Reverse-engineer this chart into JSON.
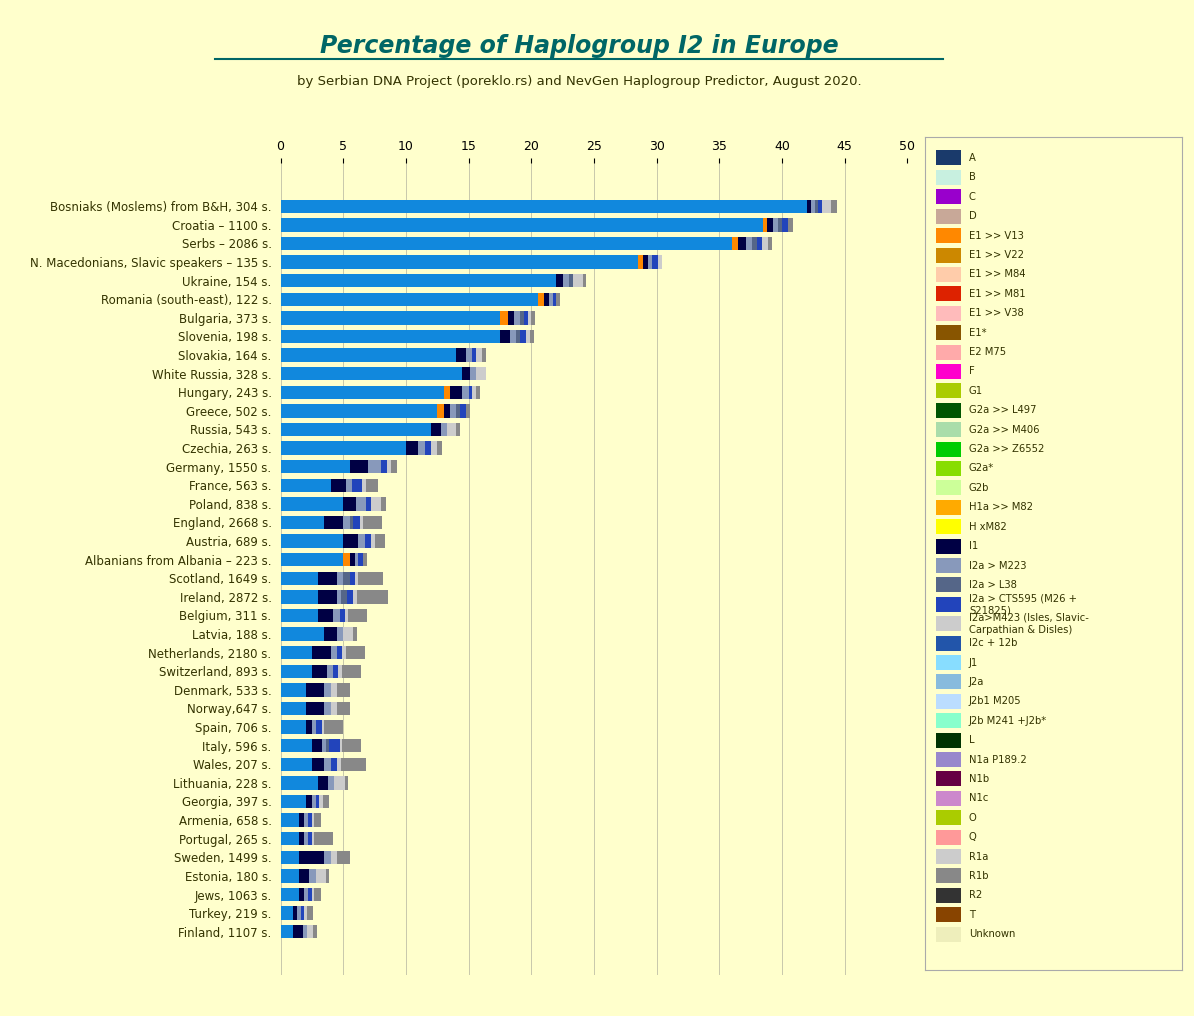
{
  "title": "Percentage of Haplogroup I2 in Europe",
  "subtitle": "by Serbian DNA Project (poreklo.rs) and NevGen Haplogroup Predictor, August 2020.",
  "background_color": "#FFFFCC",
  "title_color": "#006666",
  "subtitle_color": "#333300",
  "xlim": [
    0,
    50
  ],
  "xticks": [
    0,
    5,
    10,
    15,
    20,
    25,
    30,
    35,
    40,
    45,
    50
  ],
  "countries": [
    "Bosniaks (Moslems) from B&H, 304 s.",
    "Croatia – 1100 s.",
    "Serbs – 2086 s.",
    "N. Macedonians, Slavic speakers – 135 s.",
    "Ukraine, 154 s.",
    "Romania (south-east), 122 s.",
    "Bulgaria, 373 s.",
    "Slovenia, 198 s.",
    "Slovakia, 164 s.",
    "White Russia, 328 s.",
    "Hungary, 243 s.",
    "Greece, 502 s.",
    "Russia, 543 s.",
    "Czechia, 263 s.",
    "Germany, 1550 s.",
    "France, 563 s.",
    "Poland, 838 s.",
    "England, 2668 s.",
    "Austria, 689 s.",
    "Albanians from Albania – 223 s.",
    "Scotland, 1649 s.",
    "Ireland, 2872 s.",
    "Belgium, 311 s.",
    "Latvia, 188 s.",
    "Netherlands, 2180 s.",
    "Switzerland, 893 s.",
    "Denmark, 533 s.",
    "Norway,647 s.",
    "Spain, 706 s.",
    "Italy, 596 s.",
    "Wales, 207 s.",
    "Lithuania, 228 s.",
    "Georgia, 397 s.",
    "Armenia, 658 s.",
    "Portugal, 265 s.",
    "Sweden, 1499 s.",
    "Estonia, 180 s.",
    "Jews, 1063 s.",
    "Turkey, 219 s.",
    "Finland, 1107 s."
  ],
  "haplogroups": [
    "A",
    "B",
    "C",
    "D",
    "E1 >> V13",
    "E1 >> V22",
    "E1 >> M84",
    "E1 >> M81",
    "E1 >> V38",
    "E1*",
    "E2 M75",
    "F",
    "G1",
    "G2a >> L497",
    "G2a >> M406",
    "G2a >> Z6552",
    "G2a*",
    "G2b",
    "H1a >> M82",
    "H xM82",
    "I1",
    "I2a > M223",
    "I2a > L38",
    "I2a > CTS595 (M26 + S21825)",
    "I2a>M423 (Isles, Slavic-Carpathian & Disles)",
    "I2c + 12b",
    "J1",
    "J2a",
    "J2b1 M205",
    "J2b M241 +J2b*",
    "L",
    "N1a P189.2",
    "N1b",
    "N1c",
    "O",
    "Q",
    "R1a",
    "R1b",
    "R2",
    "T",
    "Unknown"
  ],
  "legend_labels": [
    "A",
    "B",
    "C",
    "D",
    "E1 >> V13",
    "E1 >> V22",
    "E1 >> M84",
    "E1 >> M81",
    "E1 >> V38",
    "E1*",
    "E2 M75",
    "F",
    "G1",
    "G2a >> L497",
    "G2a >> M406",
    "G2a >> Z6552",
    "G2a*",
    "G2b",
    "H1a >> M82",
    "H xM82",
    "I1",
    "I2a > M223",
    "I2a > L38",
    "I2a > CTS595 (M26 +\nS21825)",
    "I2a>M423 (Isles, Slavic-\nCarpathian & Disles)",
    "I2c + 12b",
    "J1",
    "J2a",
    "J2b1 M205",
    "J2b M241 +J2b*",
    "L",
    "N1a P189.2",
    "N1b",
    "N1c",
    "O",
    "Q",
    "R1a",
    "R1b",
    "R2",
    "T",
    "Unknown"
  ],
  "haplo_colors": {
    "A": "#1a3a6b",
    "B": "#c8f0e0",
    "C": "#9900cc",
    "D": "#c8a898",
    "E1 >> V13": "#ff8800",
    "E1 >> V22": "#cc8800",
    "E1 >> M84": "#ffccaa",
    "E1 >> M81": "#dd2200",
    "E1 >> V38": "#ffbbbb",
    "E1*": "#885500",
    "E2 M75": "#ffaaaa",
    "F": "#ff00cc",
    "G1": "#aacc00",
    "G2a >> L497": "#005500",
    "G2a >> M406": "#aaddaa",
    "G2a >> Z6552": "#00cc00",
    "G2a*": "#88dd00",
    "G2b": "#ccff99",
    "H1a >> M82": "#ffaa00",
    "H xM82": "#ffff00",
    "I1": "#000044",
    "I2a > M223": "#8899bb",
    "I2a > L38": "#556688",
    "I2a > CTS595 (M26 + S21825)": "#2244bb",
    "I2a>M423 (Isles, Slavic-Carpathian & Disles)": "#1188dd",
    "I2c + 12b": "#2255aa",
    "J1": "#88ddff",
    "J2a": "#88bbdd",
    "J2b1 M205": "#bbddff",
    "J2b M241 +J2b*": "#88ffcc",
    "L": "#003300",
    "N1a P189.2": "#9988cc",
    "N1b": "#660044",
    "N1c": "#cc88cc",
    "O": "#aacc00",
    "Q": "#ff9999",
    "R1a": "#cccccc",
    "R1b": "#888888",
    "R2": "#333333",
    "T": "#884400",
    "Unknown": "#eeeebb"
  },
  "bar_data": {
    "Bosniaks (Moslems) from B&H, 304 s.": {
      "I2a>M423 (Isles, Slavic-Carpathian & Disles)": 42.0,
      "I2a > CTS595 (M26 + S21825)": 0.3,
      "I2a > L38": 0.3,
      "I2a > M223": 0.3,
      "I1": 0.3,
      "R1a": 0.7,
      "R1b": 0.5
    },
    "Croatia – 1100 s.": {
      "I2a>M423 (Isles, Slavic-Carpathian & Disles)": 38.5,
      "I2a > CTS595 (M26 + S21825)": 0.5,
      "I2a > L38": 0.3,
      "I2a > M223": 0.4,
      "I1": 0.5,
      "E1 >> V13": 0.3,
      "R1b": 0.4
    },
    "Serbs – 2086 s.": {
      "I2a>M423 (Isles, Slavic-Carpathian & Disles)": 36.0,
      "I2a > CTS595 (M26 + S21825)": 0.4,
      "I2a > L38": 0.4,
      "I2a > M223": 0.5,
      "I1": 0.6,
      "E1 >> V13": 0.5,
      "R1a": 0.5,
      "R1b": 0.3
    },
    "N. Macedonians, Slavic speakers – 135 s.": {
      "I2a>M423 (Isles, Slavic-Carpathian & Disles)": 28.5,
      "I2a > CTS595 (M26 + S21825)": 0.5,
      "I2a > M223": 0.3,
      "I1": 0.4,
      "E1 >> V13": 0.4,
      "R1a": 0.3
    },
    "Ukraine, 154 s.": {
      "I2a>M423 (Isles, Slavic-Carpathian & Disles)": 22.0,
      "I2a > L38": 0.3,
      "I2a > M223": 0.5,
      "I1": 0.5,
      "R1a": 0.8,
      "R1b": 0.3
    },
    "Romania (south-east), 122 s.": {
      "I2a>M423 (Isles, Slavic-Carpathian & Disles)": 20.5,
      "I2a > CTS595 (M26 + S21825)": 0.3,
      "I2a > M223": 0.3,
      "I1": 0.4,
      "E1 >> V13": 0.5,
      "R1b": 0.3
    },
    "Bulgaria, 373 s.": {
      "I2a>M423 (Isles, Slavic-Carpathian & Disles)": 17.5,
      "I2a > CTS595 (M26 + S21825)": 0.3,
      "I2a > L38": 0.3,
      "I2a > M223": 0.5,
      "I1": 0.5,
      "E1 >> V13": 0.6,
      "R1a": 0.3,
      "R1b": 0.3
    },
    "Slovenia, 198 s.": {
      "I2a>M423 (Isles, Slavic-Carpathian & Disles)": 17.5,
      "I2a > CTS595 (M26 + S21825)": 0.5,
      "I2a > L38": 0.3,
      "I2a > M223": 0.5,
      "I1": 0.8,
      "R1a": 0.3,
      "R1b": 0.3
    },
    "Slovakia, 164 s.": {
      "I2a>M423 (Isles, Slavic-Carpathian & Disles)": 14.0,
      "I2a > CTS595 (M26 + S21825)": 0.3,
      "I2a > M223": 0.5,
      "I1": 0.8,
      "R1a": 0.5,
      "R1b": 0.3
    },
    "White Russia, 328 s.": {
      "I2a>M423 (Isles, Slavic-Carpathian & Disles)": 14.5,
      "I2a > M223": 0.5,
      "I1": 0.6,
      "R1a": 0.8
    },
    "Hungary, 243 s.": {
      "I2a>M423 (Isles, Slavic-Carpathian & Disles)": 13.0,
      "I2a > CTS595 (M26 + S21825)": 0.3,
      "I2a > M223": 0.5,
      "I1": 1.0,
      "E1 >> V13": 0.5,
      "R1a": 0.3,
      "R1b": 0.3
    },
    "Greece, 502 s.": {
      "I2a>M423 (Isles, Slavic-Carpathian & Disles)": 12.5,
      "I2a > CTS595 (M26 + S21825)": 0.5,
      "I2a > L38": 0.3,
      "I2a > M223": 0.5,
      "I1": 0.5,
      "E1 >> V13": 0.5,
      "R1b": 0.3
    },
    "Russia, 543 s.": {
      "I2a>M423 (Isles, Slavic-Carpathian & Disles)": 12.0,
      "I2a > M223": 0.5,
      "I1": 0.8,
      "R1a": 0.7,
      "R1b": 0.3
    },
    "Czechia, 263 s.": {
      "I2a>M423 (Isles, Slavic-Carpathian & Disles)": 10.0,
      "I2a > CTS595 (M26 + S21825)": 0.5,
      "I2a > M223": 0.5,
      "I1": 1.0,
      "R1a": 0.5,
      "R1b": 0.4
    },
    "Germany, 1550 s.": {
      "I2a>M423 (Isles, Slavic-Carpathian & Disles)": 5.5,
      "I2a > CTS595 (M26 + S21825)": 0.5,
      "I2a > M223": 1.0,
      "I1": 1.5,
      "R1b": 0.5,
      "R1a": 0.3
    },
    "France, 563 s.": {
      "I2a>M423 (Isles, Slavic-Carpathian & Disles)": 4.0,
      "I2a > CTS595 (M26 + S21825)": 0.8,
      "I2a > M223": 0.5,
      "I1": 1.2,
      "R1b": 1.0,
      "R1a": 0.3
    },
    "Poland, 838 s.": {
      "I2a>M423 (Isles, Slavic-Carpathian & Disles)": 5.0,
      "I2a > CTS595 (M26 + S21825)": 0.4,
      "I2a > M223": 0.8,
      "I1": 1.0,
      "R1a": 0.8,
      "R1b": 0.4
    },
    "England, 2668 s.": {
      "I2a>M423 (Isles, Slavic-Carpathian & Disles)": 3.5,
      "I2a > CTS595 (M26 + S21825)": 0.5,
      "I2a > M223": 0.5,
      "I2a > L38": 0.3,
      "I1": 1.5,
      "R1b": 1.5,
      "R1a": 0.3
    },
    "Austria, 689 s.": {
      "I2a>M423 (Isles, Slavic-Carpathian & Disles)": 5.0,
      "I2a > CTS595 (M26 + S21825)": 0.5,
      "I2a > M223": 0.5,
      "I1": 1.2,
      "R1b": 0.8,
      "R1a": 0.3
    },
    "Albanians from Albania – 223 s.": {
      "I2a>M423 (Isles, Slavic-Carpathian & Disles)": 5.0,
      "I2a > CTS595 (M26 + S21825)": 0.4,
      "I2a > M223": 0.3,
      "I1": 0.4,
      "E1 >> V13": 0.5,
      "R1b": 0.3
    },
    "Scotland, 1649 s.": {
      "I2a>M423 (Isles, Slavic-Carpathian & Disles)": 3.0,
      "I2a > CTS595 (M26 + S21825)": 0.4,
      "I2a > M223": 0.5,
      "I2a > L38": 0.5,
      "I1": 1.5,
      "R1b": 2.0,
      "R1a": 0.3
    },
    "Ireland, 2872 s.": {
      "I2a>M423 (Isles, Slavic-Carpathian & Disles)": 3.0,
      "I2a > CTS595 (M26 + S21825)": 0.5,
      "I2a > M223": 0.3,
      "I2a > L38": 0.5,
      "I1": 1.5,
      "R1b": 2.5,
      "R1a": 0.3
    },
    "Belgium, 311 s.": {
      "I2a>M423 (Isles, Slavic-Carpathian & Disles)": 3.0,
      "I2a > CTS595 (M26 + S21825)": 0.4,
      "I2a > M223": 0.5,
      "I1": 1.2,
      "R1b": 1.5,
      "R1a": 0.3
    },
    "Latvia, 188 s.": {
      "I2a>M423 (Isles, Slavic-Carpathian & Disles)": 3.5,
      "I2a > M223": 0.5,
      "I1": 1.0,
      "R1a": 0.8,
      "R1b": 0.3
    },
    "Netherlands, 2180 s.": {
      "I2a>M423 (Isles, Slavic-Carpathian & Disles)": 2.5,
      "I2a > CTS595 (M26 + S21825)": 0.4,
      "I2a > M223": 0.5,
      "I1": 1.5,
      "R1b": 1.5,
      "R1a": 0.3
    },
    "Switzerland, 893 s.": {
      "I2a>M423 (Isles, Slavic-Carpathian & Disles)": 2.5,
      "I2a > CTS595 (M26 + S21825)": 0.4,
      "I2a > M223": 0.5,
      "I1": 1.2,
      "R1b": 1.5,
      "R1a": 0.3
    },
    "Denmark, 533 s.": {
      "I2a>M423 (Isles, Slavic-Carpathian & Disles)": 2.0,
      "I2a > M223": 0.5,
      "I1": 1.5,
      "R1b": 1.0,
      "R1a": 0.5
    },
    "Norway,647 s.": {
      "I2a>M423 (Isles, Slavic-Carpathian & Disles)": 2.0,
      "I2a > M223": 0.5,
      "I1": 1.5,
      "R1b": 1.0,
      "R1a": 0.5
    },
    "Spain, 706 s.": {
      "I2a>M423 (Isles, Slavic-Carpathian & Disles)": 2.0,
      "I2a > CTS595 (M26 + S21825)": 0.5,
      "I2a > M223": 0.3,
      "I1": 0.5,
      "R1b": 1.5,
      "R1a": 0.2
    },
    "Italy, 596 s.": {
      "I2a>M423 (Isles, Slavic-Carpathian & Disles)": 2.5,
      "I2a > CTS595 (M26 + S21825)": 0.8,
      "I2a > M223": 0.3,
      "I2a > L38": 0.3,
      "I1": 0.8,
      "R1b": 1.5,
      "R1a": 0.2
    },
    "Wales, 207 s.": {
      "I2a>M423 (Isles, Slavic-Carpathian & Disles)": 2.5,
      "I2a > CTS595 (M26 + S21825)": 0.5,
      "I2a > M223": 0.5,
      "I1": 1.0,
      "R1b": 2.0,
      "R1a": 0.3
    },
    "Lithuania, 228 s.": {
      "I2a>M423 (Isles, Slavic-Carpathian & Disles)": 3.0,
      "I2a > M223": 0.5,
      "I1": 0.8,
      "R1a": 0.8,
      "R1b": 0.3
    },
    "Georgia, 397 s.": {
      "I2a>M423 (Isles, Slavic-Carpathian & Disles)": 2.0,
      "I2a > CTS595 (M26 + S21825)": 0.3,
      "I2a > M223": 0.3,
      "I1": 0.5,
      "R1b": 0.5,
      "R1a": 0.3
    },
    "Armenia, 658 s.": {
      "I2a>M423 (Isles, Slavic-Carpathian & Disles)": 1.5,
      "I2a > CTS595 (M26 + S21825)": 0.3,
      "I2a > M223": 0.3,
      "I1": 0.4,
      "R1b": 0.5,
      "R1a": 0.2
    },
    "Portugal, 265 s.": {
      "I2a>M423 (Isles, Slavic-Carpathian & Disles)": 1.5,
      "I2a > CTS595 (M26 + S21825)": 0.3,
      "I2a > M223": 0.3,
      "I1": 0.4,
      "R1b": 1.5,
      "R1a": 0.2
    },
    "Sweden, 1499 s.": {
      "I2a>M423 (Isles, Slavic-Carpathian & Disles)": 1.5,
      "I2a > M223": 0.5,
      "I1": 2.0,
      "R1b": 1.0,
      "R1a": 0.5
    },
    "Estonia, 180 s.": {
      "I2a>M423 (Isles, Slavic-Carpathian & Disles)": 1.5,
      "I2a > M223": 0.5,
      "I1": 0.8,
      "R1a": 0.8,
      "R1b": 0.3
    },
    "Jews, 1063 s.": {
      "I2a>M423 (Isles, Slavic-Carpathian & Disles)": 1.5,
      "I2a > CTS595 (M26 + S21825)": 0.3,
      "I2a > M223": 0.3,
      "I1": 0.4,
      "R1b": 0.5,
      "R1a": 0.2
    },
    "Turkey, 219 s.": {
      "I2a>M423 (Isles, Slavic-Carpathian & Disles)": 1.0,
      "I2a > CTS595 (M26 + S21825)": 0.3,
      "I2a > M223": 0.3,
      "I1": 0.3,
      "R1b": 0.5,
      "R1a": 0.2
    },
    "Finland, 1107 s.": {
      "I2a>M423 (Isles, Slavic-Carpathian & Disles)": 1.0,
      "I2a > M223": 0.3,
      "I1": 0.8,
      "R1a": 0.5,
      "R1b": 0.3
    }
  }
}
